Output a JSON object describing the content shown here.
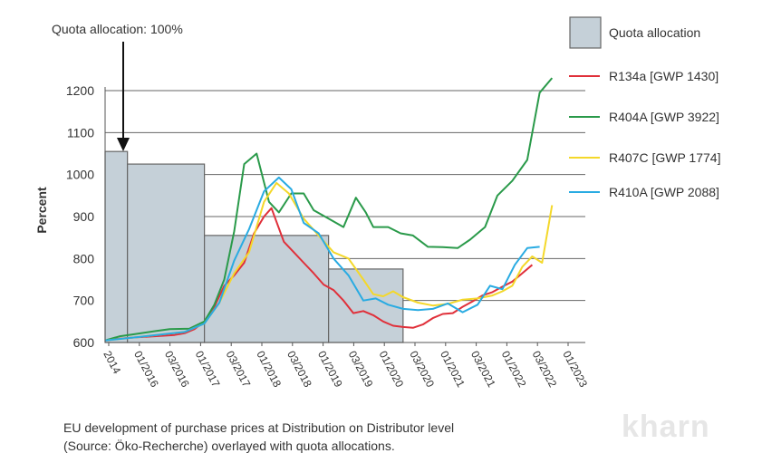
{
  "chart_data": {
    "type": "line",
    "annotation": "Quota allocation: 100%",
    "ylabel": "Percent",
    "xlabel": "",
    "ylim": [
      600,
      1200
    ],
    "yticks": [
      600,
      700,
      800,
      900,
      1000,
      1100,
      1200
    ],
    "ytick_labels": [
      "600",
      "700",
      "800",
      "900",
      "1000",
      "1100",
      "1200"
    ],
    "x_range": [
      2014.0,
      2023.67
    ],
    "xticks": [
      {
        "label": "2014",
        "x": 2014.0
      },
      {
        "label": "01/2016",
        "x": 2016.0
      },
      {
        "label": "03/2016",
        "x": 2016.17
      },
      {
        "label": "01/2017",
        "x": 2017.0
      },
      {
        "label": "03/2017",
        "x": 2017.17
      },
      {
        "label": "01/2018",
        "x": 2018.0
      },
      {
        "label": "03/2018",
        "x": 2018.17
      },
      {
        "label": "01/2019",
        "x": 2019.0
      },
      {
        "label": "03/2019",
        "x": 2019.17
      },
      {
        "label": "01/2020",
        "x": 2020.0
      },
      {
        "label": "03/2020",
        "x": 2020.17
      },
      {
        "label": "01/2021",
        "x": 2021.0
      },
      {
        "label": "03/2021",
        "x": 2021.17
      },
      {
        "label": "01/2022",
        "x": 2022.0
      },
      {
        "label": "03/2022",
        "x": 2022.17
      },
      {
        "label": "01/2023",
        "x": 2023.0
      }
    ],
    "grid": "horizontal",
    "legend_position": "right",
    "quota": {
      "name": "Quota allocation",
      "color": "#c5d0d8",
      "steps": [
        {
          "x0": 2014.0,
          "x1": 2014.45,
          "value": 1055
        },
        {
          "x0": 2014.45,
          "x1": 2016.0,
          "value": 1025
        },
        {
          "x0": 2016.0,
          "x1": 2018.5,
          "value": 855
        },
        {
          "x0": 2018.5,
          "x1": 2020.0,
          "value": 775
        }
      ]
    },
    "series": [
      {
        "name": "R134a [GWP 1430]",
        "color": "#e0303a",
        "points": [
          [
            2014.0,
            605
          ],
          [
            2014.2,
            608
          ],
          [
            2014.6,
            612
          ],
          [
            2015.0,
            615
          ],
          [
            2015.4,
            618
          ],
          [
            2015.6,
            622
          ],
          [
            2015.8,
            632
          ],
          [
            2016.0,
            650
          ],
          [
            2016.2,
            685
          ],
          [
            2016.4,
            735
          ],
          [
            2016.6,
            760
          ],
          [
            2016.8,
            790
          ],
          [
            2017.0,
            860
          ],
          [
            2017.2,
            900
          ],
          [
            2017.35,
            920
          ],
          [
            2017.6,
            840
          ],
          [
            2017.8,
            815
          ],
          [
            2018.0,
            790
          ],
          [
            2018.2,
            765
          ],
          [
            2018.4,
            738
          ],
          [
            2018.6,
            725
          ],
          [
            2018.8,
            700
          ],
          [
            2019.0,
            670
          ],
          [
            2019.2,
            675
          ],
          [
            2019.4,
            665
          ],
          [
            2019.6,
            650
          ],
          [
            2019.8,
            640
          ],
          [
            2020.0,
            637
          ],
          [
            2020.2,
            635
          ],
          [
            2020.4,
            643
          ],
          [
            2020.6,
            658
          ],
          [
            2020.8,
            668
          ],
          [
            2021.0,
            670
          ],
          [
            2021.2,
            685
          ],
          [
            2021.4,
            698
          ],
          [
            2021.6,
            712
          ],
          [
            2021.8,
            720
          ],
          [
            2022.0,
            733
          ],
          [
            2022.2,
            745
          ],
          [
            2022.4,
            765
          ],
          [
            2022.6,
            785
          ]
        ]
      },
      {
        "name": "R404A [GWP 3922]",
        "color": "#2a9a4a",
        "points": [
          [
            2014.0,
            605
          ],
          [
            2014.3,
            615
          ],
          [
            2014.6,
            620
          ],
          [
            2015.0,
            627
          ],
          [
            2015.3,
            632
          ],
          [
            2015.7,
            633
          ],
          [
            2016.0,
            650
          ],
          [
            2016.2,
            690
          ],
          [
            2016.4,
            750
          ],
          [
            2016.6,
            865
          ],
          [
            2016.8,
            1025
          ],
          [
            2017.05,
            1050
          ],
          [
            2017.3,
            935
          ],
          [
            2017.5,
            910
          ],
          [
            2017.75,
            955
          ],
          [
            2018.0,
            955
          ],
          [
            2018.2,
            915
          ],
          [
            2018.5,
            895
          ],
          [
            2018.8,
            875
          ],
          [
            2019.05,
            945
          ],
          [
            2019.25,
            910
          ],
          [
            2019.4,
            875
          ],
          [
            2019.7,
            875
          ],
          [
            2019.95,
            860
          ],
          [
            2020.2,
            855
          ],
          [
            2020.5,
            828
          ],
          [
            2020.8,
            827
          ],
          [
            2021.1,
            825
          ],
          [
            2021.35,
            845
          ],
          [
            2021.65,
            875
          ],
          [
            2021.9,
            950
          ],
          [
            2022.2,
            985
          ],
          [
            2022.5,
            1035
          ],
          [
            2022.75,
            1195
          ],
          [
            2023.0,
            1230
          ]
        ]
      },
      {
        "name": "R407C [GWP 1774]",
        "color": "#f4d82a",
        "points": [
          [
            2014.0,
            605
          ],
          [
            2014.6,
            612
          ],
          [
            2015.2,
            620
          ],
          [
            2015.6,
            625
          ],
          [
            2016.0,
            645
          ],
          [
            2016.3,
            695
          ],
          [
            2016.6,
            765
          ],
          [
            2016.9,
            815
          ],
          [
            2017.2,
            935
          ],
          [
            2017.45,
            980
          ],
          [
            2017.7,
            955
          ],
          [
            2018.0,
            895
          ],
          [
            2018.3,
            855
          ],
          [
            2018.6,
            815
          ],
          [
            2018.9,
            800
          ],
          [
            2019.2,
            750
          ],
          [
            2019.4,
            715
          ],
          [
            2019.6,
            710
          ],
          [
            2019.8,
            722
          ],
          [
            2020.0,
            708
          ],
          [
            2020.3,
            695
          ],
          [
            2020.6,
            688
          ],
          [
            2020.9,
            692
          ],
          [
            2021.2,
            702
          ],
          [
            2021.5,
            705
          ],
          [
            2021.8,
            712
          ],
          [
            2022.0,
            722
          ],
          [
            2022.2,
            735
          ],
          [
            2022.4,
            780
          ],
          [
            2022.6,
            805
          ],
          [
            2022.8,
            790
          ],
          [
            2023.0,
            927
          ]
        ]
      },
      {
        "name": "R410A [GWP 2088]",
        "color": "#29abe2",
        "points": [
          [
            2014.0,
            605
          ],
          [
            2014.6,
            612
          ],
          [
            2015.2,
            620
          ],
          [
            2015.6,
            625
          ],
          [
            2016.0,
            645
          ],
          [
            2016.3,
            695
          ],
          [
            2016.6,
            795
          ],
          [
            2016.9,
            870
          ],
          [
            2017.2,
            960
          ],
          [
            2017.5,
            993
          ],
          [
            2017.75,
            965
          ],
          [
            2018.0,
            885
          ],
          [
            2018.3,
            860
          ],
          [
            2018.6,
            800
          ],
          [
            2018.9,
            760
          ],
          [
            2019.2,
            700
          ],
          [
            2019.45,
            705
          ],
          [
            2019.7,
            690
          ],
          [
            2020.0,
            680
          ],
          [
            2020.3,
            677
          ],
          [
            2020.6,
            680
          ],
          [
            2020.9,
            693
          ],
          [
            2021.2,
            672
          ],
          [
            2021.5,
            690
          ],
          [
            2021.75,
            735
          ],
          [
            2022.0,
            727
          ],
          [
            2022.25,
            785
          ],
          [
            2022.5,
            825
          ],
          [
            2022.75,
            828
          ]
        ]
      }
    ]
  }
}
